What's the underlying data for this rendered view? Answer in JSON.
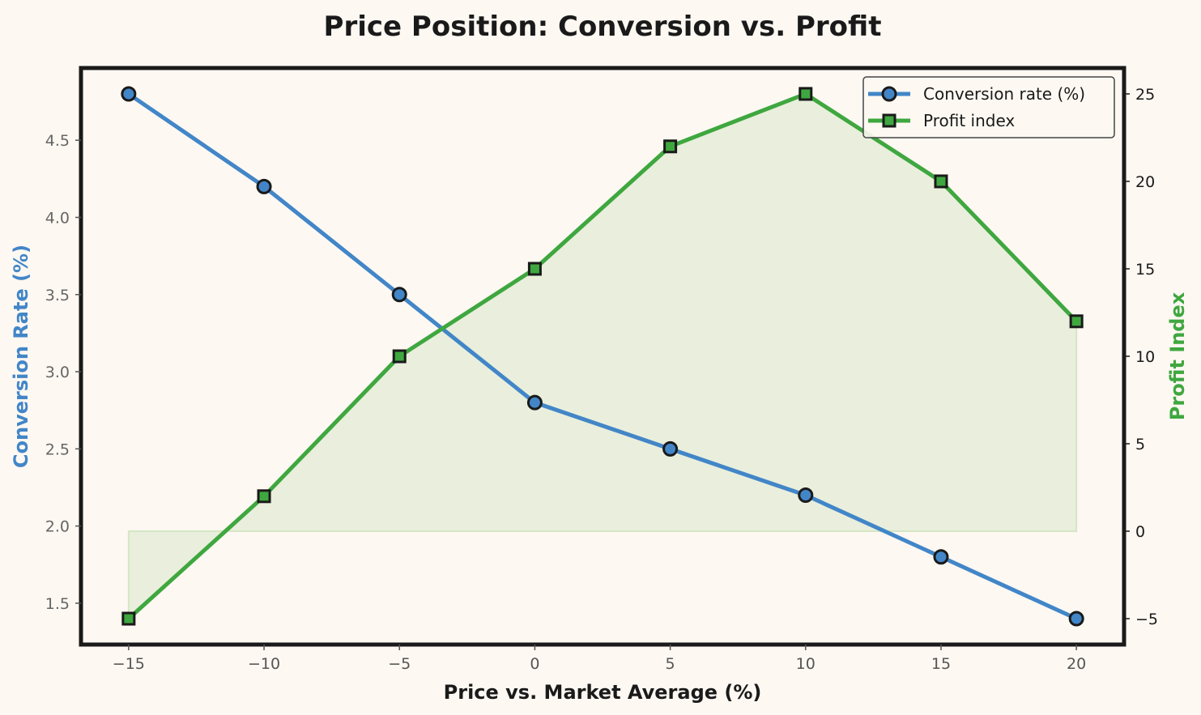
{
  "chart_data": {
    "type": "line",
    "title": "Price Position: Conversion vs. Profit",
    "xlabel": "Price vs. Market Average (%)",
    "ylabel_left": "Conversion Rate (%)",
    "ylabel_right": "Profit Index",
    "x": [
      -15,
      -10,
      -5,
      0,
      5,
      10,
      15,
      20
    ],
    "xlim": [
      -16.76,
      21.76
    ],
    "ylim_left": [
      1.232,
      4.968
    ],
    "ylim_right": [
      -6.48,
      26.48
    ],
    "xticks": [
      -15,
      -10,
      -5,
      0,
      5,
      10,
      15,
      20
    ],
    "yticks_left": [
      1.5,
      2.0,
      2.5,
      3.0,
      3.5,
      4.0,
      4.5
    ],
    "yticks_right": [
      -5,
      0,
      5,
      10,
      15,
      20,
      25
    ],
    "grid": false,
    "legend_position": "top-right",
    "series": [
      {
        "name": "Conversion rate (%)",
        "axis": "left",
        "marker": "circle",
        "color": "#4286c8",
        "values": [
          4.8,
          4.2,
          3.5,
          2.8,
          2.5,
          2.2,
          1.8,
          1.4
        ]
      },
      {
        "name": "Profit index",
        "axis": "right",
        "marker": "square",
        "color": "#3fa73f",
        "fill_to_zero": true,
        "fill_color": "#e9efdc",
        "values": [
          -5,
          2,
          10,
          15,
          22,
          25,
          20,
          12
        ]
      }
    ]
  }
}
